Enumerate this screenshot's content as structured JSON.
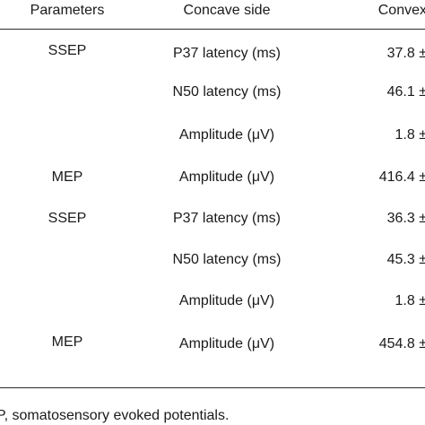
{
  "table": {
    "headers": {
      "parameters": "Parameters",
      "concave": "Concave side",
      "convex": "Convex"
    },
    "rows": [
      {
        "parameter": "SSEP",
        "measure": "P37 latency (ms)",
        "convex": "37.8 ±"
      },
      {
        "parameter": "",
        "measure": "N50 latency (ms)",
        "convex": "46.1 ±"
      },
      {
        "parameter": "",
        "measure": "Amplitude (μV)",
        "convex": "1.8 ±"
      },
      {
        "parameter": "MEP",
        "measure": "Amplitude (μV)",
        "convex": "416.4 ±"
      },
      {
        "parameter": "SSEP",
        "measure": "P37 latency (ms)",
        "convex": "36.3 ±"
      },
      {
        "parameter": "",
        "measure": "N50 latency (ms)",
        "convex": "45.3 ±"
      },
      {
        "parameter": "",
        "measure": "Amplitude (μV)",
        "convex": "1.8 ±"
      },
      {
        "parameter": "MEP",
        "measure": "Amplitude (μV)",
        "convex": "454.8 ±"
      }
    ]
  },
  "footnote": "P, somatosensory evoked potentials."
}
